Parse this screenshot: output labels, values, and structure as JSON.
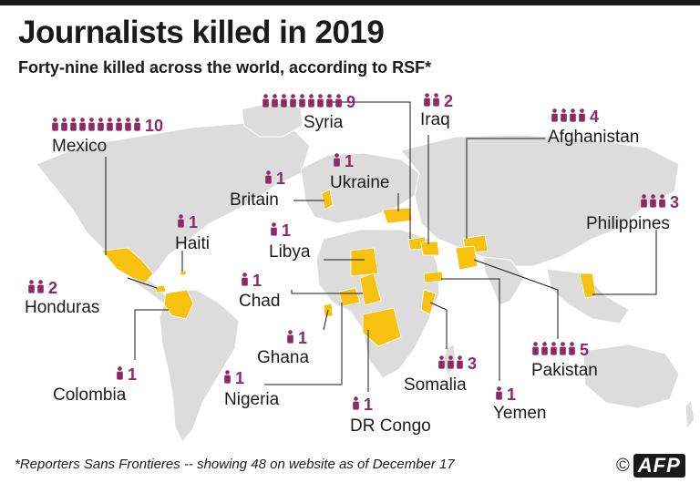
{
  "title": "Journalists killed in 2019",
  "subtitle": "Forty-nine killed across the world, according to RSF*",
  "footnote": "*Reporters Sans Frontieres -- showing 48 on website as of December 17",
  "credit": {
    "copyright": "©",
    "agency": "AFP"
  },
  "colors": {
    "accent": "#8e2a63",
    "highlight": "#f7c20f",
    "land": "#dcdcdc",
    "text": "#1a1a1a"
  },
  "icons": {
    "person": "person-icon"
  },
  "countries": [
    {
      "name": "Mexico",
      "count": "10"
    },
    {
      "name": "Syria",
      "count": "9"
    },
    {
      "name": "Iraq",
      "count": "2"
    },
    {
      "name": "Afghanistan",
      "count": "4"
    },
    {
      "name": "Ukraine",
      "count": "1"
    },
    {
      "name": "Britain",
      "count": "1"
    },
    {
      "name": "Philippines",
      "count": "3"
    },
    {
      "name": "Haiti",
      "count": "1"
    },
    {
      "name": "Libya",
      "count": "1"
    },
    {
      "name": "Honduras",
      "count": "2"
    },
    {
      "name": "Chad",
      "count": "1"
    },
    {
      "name": "Ghana",
      "count": "1"
    },
    {
      "name": "Colombia",
      "count": "1"
    },
    {
      "name": "Nigeria",
      "count": "1"
    },
    {
      "name": "DR Congo",
      "count": "1"
    },
    {
      "name": "Somalia",
      "count": "3"
    },
    {
      "name": "Yemen",
      "count": "1"
    },
    {
      "name": "Pakistan",
      "count": "5"
    }
  ]
}
